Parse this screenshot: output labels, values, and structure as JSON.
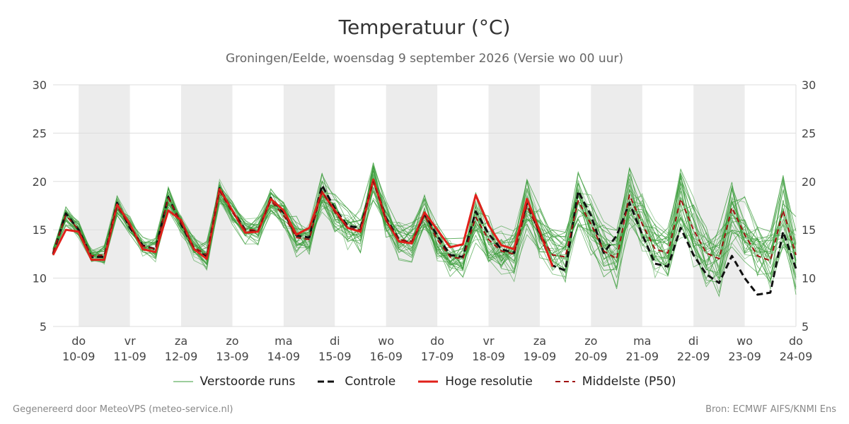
{
  "chart_data": {
    "type": "line",
    "title": "Temperatuur (°C)",
    "subtitle": "Groningen/Eelde, woensdag  9 september 2026 (Versie wo 00 uur)",
    "ylim": [
      5,
      30
    ],
    "yticks": [
      5,
      10,
      15,
      20,
      25,
      30
    ],
    "x_start": "2026-09-09T12:00",
    "x_end": "2026-09-24T00:00",
    "day_ticks": [
      {
        "day": "do",
        "date": "10-09"
      },
      {
        "day": "vr",
        "date": "11-09"
      },
      {
        "day": "za",
        "date": "12-09"
      },
      {
        "day": "zo",
        "date": "13-09"
      },
      {
        "day": "ma",
        "date": "14-09"
      },
      {
        "day": "di",
        "date": "15-09"
      },
      {
        "day": "wo",
        "date": "16-09"
      },
      {
        "day": "do",
        "date": "17-09"
      },
      {
        "day": "vr",
        "date": "18-09"
      },
      {
        "day": "za",
        "date": "19-09"
      },
      {
        "day": "zo",
        "date": "20-09"
      },
      {
        "day": "ma",
        "date": "21-09"
      },
      {
        "day": "di",
        "date": "22-09"
      },
      {
        "day": "wo",
        "date": "23-09"
      },
      {
        "day": "do",
        "date": "24-09"
      }
    ],
    "shaded_days": [
      "10-09",
      "12-09",
      "14-09",
      "16-09",
      "18-09",
      "20-09",
      "22-09"
    ],
    "grid": true,
    "legend_position": "bottom",
    "colors": {
      "ensemble": "#3a9c3a",
      "control": "#111111",
      "high_res": "#e0201a",
      "median": "#a01010",
      "shade": "#ececec",
      "grid": "#dddddd"
    },
    "series": [
      {
        "name": "Controle",
        "key": "control",
        "values": [
          [
            "2026-09-09T12:00",
            12.5
          ],
          [
            "2026-09-09T18:00",
            16.7
          ],
          [
            "2026-09-10T00:00",
            15.0
          ],
          [
            "2026-09-10T06:00",
            12.2
          ],
          [
            "2026-09-10T12:00",
            12.2
          ],
          [
            "2026-09-10T18:00",
            17.8
          ],
          [
            "2026-09-11T00:00",
            15.2
          ],
          [
            "2026-09-11T06:00",
            13.4
          ],
          [
            "2026-09-11T12:00",
            13.0
          ],
          [
            "2026-09-11T18:00",
            18.4
          ],
          [
            "2026-09-12T00:00",
            15.6
          ],
          [
            "2026-09-12T06:00",
            13.0
          ],
          [
            "2026-09-12T12:00",
            12.2
          ],
          [
            "2026-09-12T18:00",
            19.3
          ],
          [
            "2026-09-13T00:00",
            17.0
          ],
          [
            "2026-09-13T06:00",
            15.0
          ],
          [
            "2026-09-13T12:00",
            14.8
          ],
          [
            "2026-09-13T18:00",
            18.3
          ],
          [
            "2026-09-14T00:00",
            16.8
          ],
          [
            "2026-09-14T06:00",
            14.4
          ],
          [
            "2026-09-14T12:00",
            14.2
          ],
          [
            "2026-09-14T18:00",
            19.6
          ],
          [
            "2026-09-15T00:00",
            17.2
          ],
          [
            "2026-09-15T06:00",
            15.4
          ],
          [
            "2026-09-15T12:00",
            15.2
          ],
          [
            "2026-09-15T18:00",
            20.2
          ],
          [
            "2026-09-16T00:00",
            16.2
          ],
          [
            "2026-09-16T06:00",
            14.0
          ],
          [
            "2026-09-16T12:00",
            13.6
          ],
          [
            "2026-09-16T18:00",
            16.6
          ],
          [
            "2026-09-17T00:00",
            14.4
          ],
          [
            "2026-09-17T06:00",
            12.4
          ],
          [
            "2026-09-17T12:00",
            12.2
          ],
          [
            "2026-09-17T18:00",
            16.9
          ],
          [
            "2026-09-18T00:00",
            14.6
          ],
          [
            "2026-09-18T06:00",
            13.0
          ],
          [
            "2026-09-18T12:00",
            12.6
          ],
          [
            "2026-09-18T18:00",
            17.8
          ],
          [
            "2026-09-19T00:00",
            14.6
          ],
          [
            "2026-09-19T06:00",
            11.3
          ],
          [
            "2026-09-19T12:00",
            10.8
          ],
          [
            "2026-09-19T18:00",
            19.0
          ],
          [
            "2026-09-20T00:00",
            16.5
          ],
          [
            "2026-09-20T06:00",
            12.6
          ],
          [
            "2026-09-20T12:00",
            14.4
          ],
          [
            "2026-09-20T18:00",
            17.8
          ],
          [
            "2026-09-21T00:00",
            14.5
          ],
          [
            "2026-09-21T06:00",
            11.5
          ],
          [
            "2026-09-21T12:00",
            11.2
          ],
          [
            "2026-09-21T18:00",
            15.2
          ],
          [
            "2026-09-22T00:00",
            12.4
          ],
          [
            "2026-09-22T06:00",
            10.4
          ],
          [
            "2026-09-22T12:00",
            9.5
          ],
          [
            "2026-09-22T18:00",
            12.3
          ],
          [
            "2026-09-23T00:00",
            10.0
          ],
          [
            "2026-09-23T06:00",
            8.3
          ],
          [
            "2026-09-23T12:00",
            8.5
          ],
          [
            "2026-09-23T18:00",
            14.8
          ],
          [
            "2026-09-24T00:00",
            11.0
          ]
        ]
      },
      {
        "name": "Hoge resolutie",
        "key": "high_res",
        "values": [
          [
            "2026-09-09T12:00",
            12.4
          ],
          [
            "2026-09-09T18:00",
            15.0
          ],
          [
            "2026-09-10T00:00",
            14.8
          ],
          [
            "2026-09-10T06:00",
            11.9
          ],
          [
            "2026-09-10T12:00",
            11.9
          ],
          [
            "2026-09-10T18:00",
            17.6
          ],
          [
            "2026-09-11T00:00",
            15.6
          ],
          [
            "2026-09-11T06:00",
            13.0
          ],
          [
            "2026-09-11T12:00",
            12.7
          ],
          [
            "2026-09-11T18:00",
            17.0
          ],
          [
            "2026-09-12T00:00",
            16.0
          ],
          [
            "2026-09-12T06:00",
            13.0
          ],
          [
            "2026-09-12T12:00",
            12.0
          ],
          [
            "2026-09-12T18:00",
            19.2
          ],
          [
            "2026-09-13T00:00",
            17.0
          ],
          [
            "2026-09-13T06:00",
            14.7
          ],
          [
            "2026-09-13T12:00",
            14.8
          ],
          [
            "2026-09-13T18:00",
            18.2
          ],
          [
            "2026-09-14T00:00",
            17.0
          ],
          [
            "2026-09-14T06:00",
            14.5
          ],
          [
            "2026-09-14T12:00",
            15.2
          ],
          [
            "2026-09-14T18:00",
            18.9
          ],
          [
            "2026-09-15T00:00",
            17.0
          ],
          [
            "2026-09-15T06:00",
            15.2
          ],
          [
            "2026-09-15T12:00",
            14.8
          ],
          [
            "2026-09-15T18:00",
            20.2
          ],
          [
            "2026-09-16T00:00",
            16.0
          ],
          [
            "2026-09-16T06:00",
            13.8
          ],
          [
            "2026-09-16T12:00",
            13.6
          ],
          [
            "2026-09-16T18:00",
            16.8
          ],
          [
            "2026-09-17T00:00",
            15.0
          ],
          [
            "2026-09-17T06:00",
            13.2
          ],
          [
            "2026-09-17T12:00",
            13.5
          ],
          [
            "2026-09-17T18:00",
            18.6
          ],
          [
            "2026-09-18T00:00",
            15.5
          ],
          [
            "2026-09-18T06:00",
            13.4
          ],
          [
            "2026-09-18T12:00",
            13.0
          ],
          [
            "2026-09-18T18:00",
            18.2
          ],
          [
            "2026-09-19T00:00",
            14.8
          ],
          [
            "2026-09-19T06:00",
            11.2
          ]
        ]
      },
      {
        "name": "Middelste (P50)",
        "key": "median",
        "values": [
          [
            "2026-09-09T12:00",
            12.7
          ],
          [
            "2026-09-09T18:00",
            16.5
          ],
          [
            "2026-09-10T00:00",
            15.0
          ],
          [
            "2026-09-10T06:00",
            12.3
          ],
          [
            "2026-09-10T12:00",
            12.4
          ],
          [
            "2026-09-10T18:00",
            17.4
          ],
          [
            "2026-09-11T00:00",
            15.4
          ],
          [
            "2026-09-11T06:00",
            13.3
          ],
          [
            "2026-09-11T12:00",
            13.0
          ],
          [
            "2026-09-11T18:00",
            18.3
          ],
          [
            "2026-09-12T00:00",
            15.7
          ],
          [
            "2026-09-12T06:00",
            13.2
          ],
          [
            "2026-09-12T12:00",
            12.4
          ],
          [
            "2026-09-12T18:00",
            19.0
          ],
          [
            "2026-09-13T00:00",
            16.8
          ],
          [
            "2026-09-13T06:00",
            15.0
          ],
          [
            "2026-09-13T12:00",
            15.0
          ],
          [
            "2026-09-13T18:00",
            18.0
          ],
          [
            "2026-09-14T00:00",
            16.5
          ],
          [
            "2026-09-14T06:00",
            14.2
          ],
          [
            "2026-09-14T12:00",
            14.0
          ],
          [
            "2026-09-14T18:00",
            19.0
          ],
          [
            "2026-09-15T00:00",
            16.8
          ],
          [
            "2026-09-15T06:00",
            15.2
          ],
          [
            "2026-09-15T12:00",
            15.0
          ],
          [
            "2026-09-15T18:00",
            20.0
          ],
          [
            "2026-09-16T00:00",
            16.0
          ],
          [
            "2026-09-16T06:00",
            14.0
          ],
          [
            "2026-09-16T12:00",
            13.8
          ],
          [
            "2026-09-16T18:00",
            16.5
          ],
          [
            "2026-09-17T00:00",
            14.0
          ],
          [
            "2026-09-17T06:00",
            12.2
          ],
          [
            "2026-09-17T12:00",
            12.0
          ],
          [
            "2026-09-17T18:00",
            16.3
          ],
          [
            "2026-09-18T00:00",
            14.0
          ],
          [
            "2026-09-18T06:00",
            12.8
          ],
          [
            "2026-09-18T12:00",
            12.5
          ],
          [
            "2026-09-18T18:00",
            17.5
          ],
          [
            "2026-09-19T00:00",
            14.6
          ],
          [
            "2026-09-19T06:00",
            12.4
          ],
          [
            "2026-09-19T12:00",
            12.2
          ],
          [
            "2026-09-19T18:00",
            18.0
          ],
          [
            "2026-09-20T00:00",
            15.6
          ],
          [
            "2026-09-20T06:00",
            12.8
          ],
          [
            "2026-09-20T12:00",
            12.0
          ],
          [
            "2026-09-20T18:00",
            18.6
          ],
          [
            "2026-09-21T00:00",
            15.6
          ],
          [
            "2026-09-21T06:00",
            13.0
          ],
          [
            "2026-09-21T12:00",
            12.6
          ],
          [
            "2026-09-21T18:00",
            18.2
          ],
          [
            "2026-09-22T00:00",
            15.0
          ],
          [
            "2026-09-22T06:00",
            12.6
          ],
          [
            "2026-09-22T12:00",
            12.0
          ],
          [
            "2026-09-22T18:00",
            17.3
          ],
          [
            "2026-09-23T00:00",
            14.5
          ],
          [
            "2026-09-23T06:00",
            12.3
          ],
          [
            "2026-09-23T12:00",
            11.8
          ],
          [
            "2026-09-23T18:00",
            17.0
          ],
          [
            "2026-09-24T00:00",
            12.4
          ]
        ]
      }
    ],
    "ensemble": {
      "name": "Verstoorde runs",
      "members": 30,
      "spread": [
        [
          "2026-09-09T12:00",
          0.3
        ],
        [
          "2026-09-09T18:00",
          0.8
        ],
        [
          "2026-09-10T00:00",
          0.7
        ],
        [
          "2026-09-10T06:00",
          0.7
        ],
        [
          "2026-09-10T12:00",
          0.8
        ],
        [
          "2026-09-10T18:00",
          0.8
        ],
        [
          "2026-09-11T00:00",
          0.8
        ],
        [
          "2026-09-11T06:00",
          0.8
        ],
        [
          "2026-09-11T12:00",
          0.9
        ],
        [
          "2026-09-11T18:00",
          1.0
        ],
        [
          "2026-09-12T00:00",
          0.9
        ],
        [
          "2026-09-12T06:00",
          1.0
        ],
        [
          "2026-09-12T12:00",
          1.1
        ],
        [
          "2026-09-12T18:00",
          1.0
        ],
        [
          "2026-09-13T00:00",
          1.1
        ],
        [
          "2026-09-13T06:00",
          1.1
        ],
        [
          "2026-09-13T12:00",
          1.2
        ],
        [
          "2026-09-13T18:00",
          1.3
        ],
        [
          "2026-09-14T00:00",
          1.4
        ],
        [
          "2026-09-14T06:00",
          1.5
        ],
        [
          "2026-09-14T12:00",
          1.6
        ],
        [
          "2026-09-14T18:00",
          1.6
        ],
        [
          "2026-09-15T00:00",
          1.6
        ],
        [
          "2026-09-15T06:00",
          1.7
        ],
        [
          "2026-09-15T12:00",
          1.8
        ],
        [
          "2026-09-15T18:00",
          1.7
        ],
        [
          "2026-09-16T00:00",
          1.6
        ],
        [
          "2026-09-16T06:00",
          1.6
        ],
        [
          "2026-09-16T12:00",
          1.6
        ],
        [
          "2026-09-16T18:00",
          2.0
        ],
        [
          "2026-09-17T00:00",
          1.8
        ],
        [
          "2026-09-17T06:00",
          1.6
        ],
        [
          "2026-09-17T12:00",
          1.7
        ],
        [
          "2026-09-17T18:00",
          2.1
        ],
        [
          "2026-09-18T00:00",
          2.0
        ],
        [
          "2026-09-18T06:00",
          1.9
        ],
        [
          "2026-09-18T12:00",
          2.0
        ],
        [
          "2026-09-18T18:00",
          2.4
        ],
        [
          "2026-09-19T00:00",
          2.2
        ],
        [
          "2026-09-19T06:00",
          2.1
        ],
        [
          "2026-09-19T12:00",
          2.2
        ],
        [
          "2026-09-19T18:00",
          2.3
        ],
        [
          "2026-09-20T00:00",
          2.2
        ],
        [
          "2026-09-20T06:00",
          2.3
        ],
        [
          "2026-09-20T12:00",
          2.4
        ],
        [
          "2026-09-20T18:00",
          2.5
        ],
        [
          "2026-09-21T00:00",
          2.4
        ],
        [
          "2026-09-21T06:00",
          2.5
        ],
        [
          "2026-09-21T12:00",
          2.6
        ],
        [
          "2026-09-21T18:00",
          3.2
        ],
        [
          "2026-09-22T00:00",
          2.9
        ],
        [
          "2026-09-22T06:00",
          2.8
        ],
        [
          "2026-09-22T12:00",
          2.9
        ],
        [
          "2026-09-22T18:00",
          3.3
        ],
        [
          "2026-09-23T00:00",
          3.0
        ],
        [
          "2026-09-23T06:00",
          2.9
        ],
        [
          "2026-09-23T12:00",
          3.0
        ],
        [
          "2026-09-23T18:00",
          3.4
        ],
        [
          "2026-09-24T00:00",
          3.2
        ]
      ]
    },
    "legend": [
      {
        "label": "Verstoorde runs",
        "key": "ensemble"
      },
      {
        "label": "Controle",
        "key": "control"
      },
      {
        "label": "Hoge resolutie",
        "key": "high_res"
      },
      {
        "label": "Middelste (P50)",
        "key": "median"
      }
    ]
  },
  "footer": {
    "left": "Gegenereerd door MeteoVPS (meteo-service.nl)",
    "right": "Bron: ECMWF AIFS/KNMI Ens"
  }
}
